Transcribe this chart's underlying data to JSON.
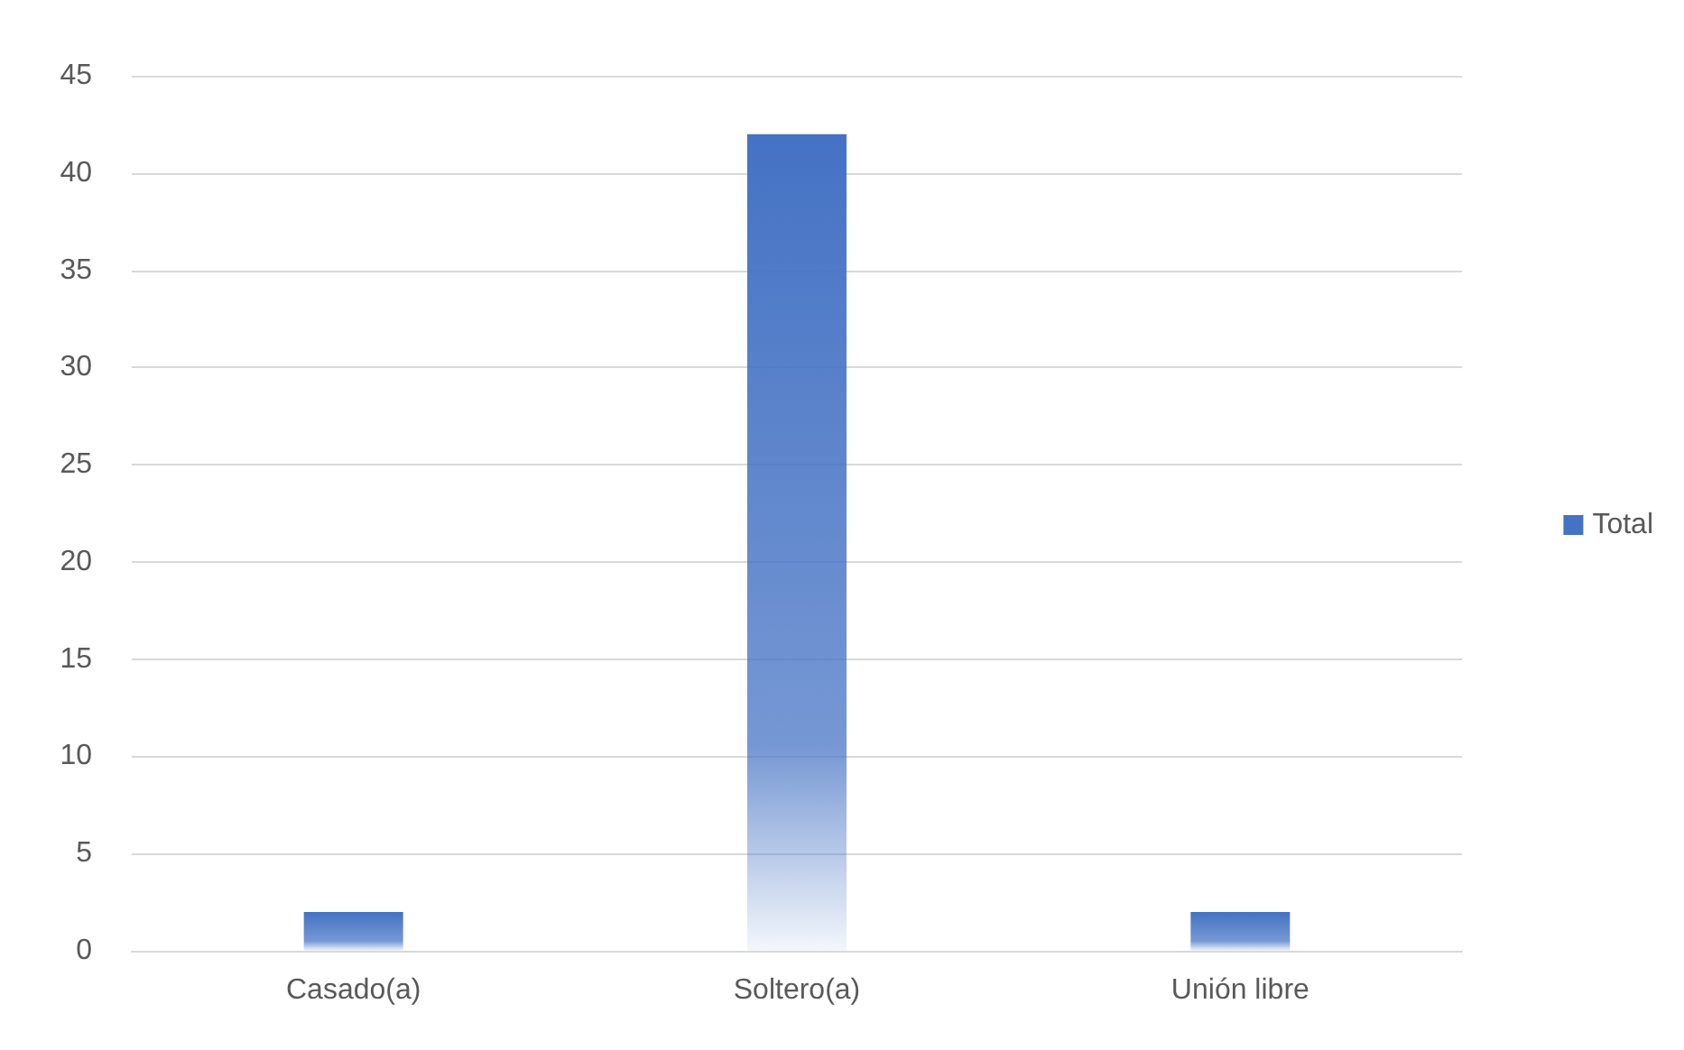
{
  "chart_data": {
    "type": "bar",
    "categories": [
      "Casado(a)",
      "Soltero(a)",
      "Unión libre"
    ],
    "series": [
      {
        "name": "Total",
        "color": "#4472c4",
        "values": [
          2,
          42,
          2
        ]
      }
    ],
    "ylim": [
      0,
      45
    ],
    "yticks": [
      0,
      5,
      10,
      15,
      20,
      25,
      30,
      35,
      40,
      45
    ],
    "grid": "y",
    "legend": "right"
  }
}
